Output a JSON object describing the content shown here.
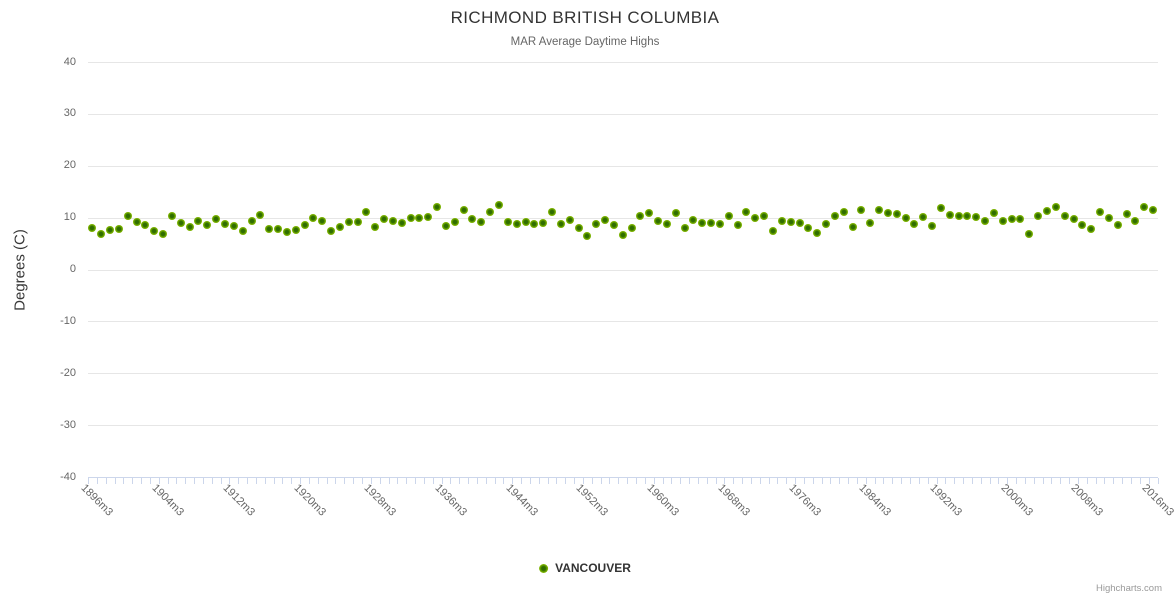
{
  "header": {
    "title": "RICHMOND BRITISH COLUMBIA",
    "subtitle": "MAR Average Daytime Highs"
  },
  "footer": {
    "credit": "Highcharts.com"
  },
  "colors": {
    "marker_outer": "#7db400",
    "marker_core": "#2f6d00",
    "gridline": "#e6e6e6",
    "axis_line": "#ccd6eb",
    "axis_label": "#666666",
    "title": "#333333"
  },
  "chart_data": {
    "type": "scatter",
    "title": "RICHMOND BRITISH COLUMBIA",
    "subtitle": "MAR Average Daytime Highs",
    "xlabel": "",
    "ylabel": "Degrees (C)",
    "ylim": [
      -40,
      40
    ],
    "yticks": [
      40,
      30,
      20,
      10,
      0,
      -10,
      -20,
      -30,
      -40
    ],
    "grid": true,
    "legend_position": "bottom-center",
    "x_start_year": 1896,
    "x_end_year": 2016,
    "x_label_suffix": "m3",
    "x_label_interval": 8,
    "x_axis_labels": [
      "1896m3",
      "1904m3",
      "1912m3",
      "1920m3",
      "1928m3",
      "1936m3",
      "1944m3",
      "1952m3",
      "1960m3",
      "1968m3",
      "1976m3",
      "1984m3",
      "1992m3",
      "2000m3",
      "2008m3",
      "2016m3"
    ],
    "series": [
      {
        "name": "VANCOUVER",
        "color": "#7db400",
        "values": [
          8.0,
          6.8,
          7.6,
          7.9,
          10.3,
          9.2,
          8.6,
          7.5,
          6.9,
          10.3,
          9.0,
          8.2,
          9.3,
          8.6,
          9.7,
          8.8,
          8.4,
          7.4,
          9.4,
          10.5,
          7.9,
          7.8,
          7.2,
          7.7,
          8.5,
          9.9,
          9.4,
          7.5,
          8.2,
          9.2,
          9.1,
          11.1,
          8.2,
          9.8,
          9.3,
          9.0,
          9.9,
          9.9,
          10.1,
          12.1,
          8.4,
          9.2,
          11.5,
          9.7,
          9.2,
          11.1,
          12.4,
          9.2,
          8.8,
          9.1,
          8.7,
          9.0,
          11.0,
          8.7,
          9.6,
          8.0,
          6.5,
          8.7,
          9.6,
          8.6,
          6.7,
          8.0,
          10.3,
          10.8,
          9.3,
          8.8,
          10.9,
          8.0,
          9.6,
          9.0,
          9.0,
          8.8,
          10.3,
          8.6,
          11.1,
          9.9,
          10.4,
          7.5,
          9.4,
          9.2,
          9.0,
          8.0,
          7.1,
          8.8,
          10.4,
          11.1,
          8.1,
          11.5,
          9.0,
          11.5,
          10.8,
          10.7,
          10.0,
          8.7,
          10.2,
          8.3,
          11.9,
          10.5,
          10.4,
          10.3,
          10.2,
          9.3,
          10.8,
          9.3,
          9.7,
          9.8,
          6.9,
          10.4,
          11.3,
          12.0,
          10.4,
          9.7,
          8.6,
          7.9,
          11.0,
          9.9,
          8.6,
          10.7,
          9.4,
          12.0,
          11.4
        ]
      }
    ]
  }
}
